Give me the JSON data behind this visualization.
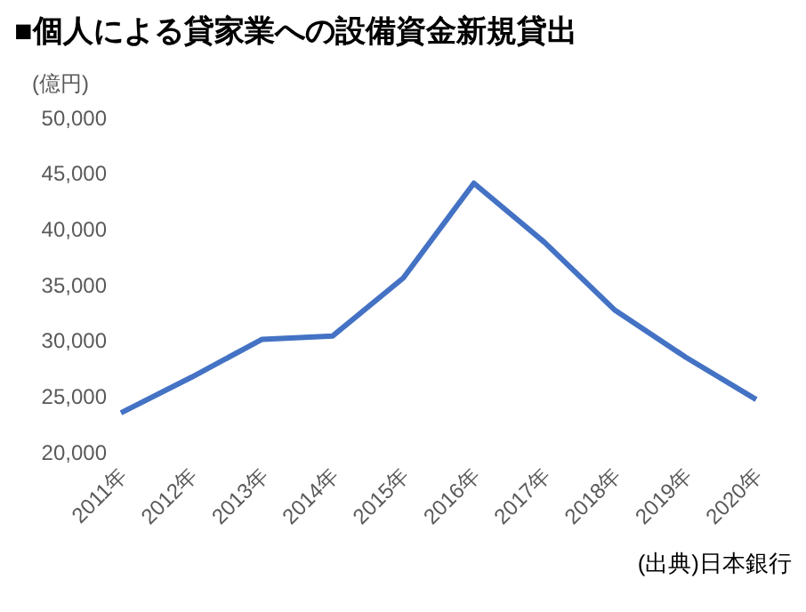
{
  "chart_data": {
    "type": "line",
    "title": "■個人による貸家業への設備資金新規貸出",
    "ylabel": "(億円)",
    "annotations": [
      "(出典)日本銀行"
    ],
    "categories": [
      "2011年",
      "2012年",
      "2013年",
      "2014年",
      "2015年",
      "2016年",
      "2017年",
      "2018年",
      "2019年",
      "2020年"
    ],
    "series": [
      {
        "color": "#4472c4",
        "values": [
          23500,
          26700,
          30100,
          30400,
          35600,
          44100,
          38800,
          32700,
          28500,
          24700
        ]
      }
    ],
    "ylim": [
      20000,
      50000
    ],
    "yticks": [
      {
        "value": 20000,
        "label": "20,000"
      },
      {
        "value": 25000,
        "label": "25,000"
      },
      {
        "value": 30000,
        "label": "30,000"
      },
      {
        "value": 35000,
        "label": "35,000"
      },
      {
        "value": 40000,
        "label": "40,000"
      },
      {
        "value": 45000,
        "label": "45,000"
      },
      {
        "value": 50000,
        "label": "50,000"
      }
    ],
    "grid": false,
    "legend": false,
    "marker": "none",
    "line_style": "solid"
  }
}
